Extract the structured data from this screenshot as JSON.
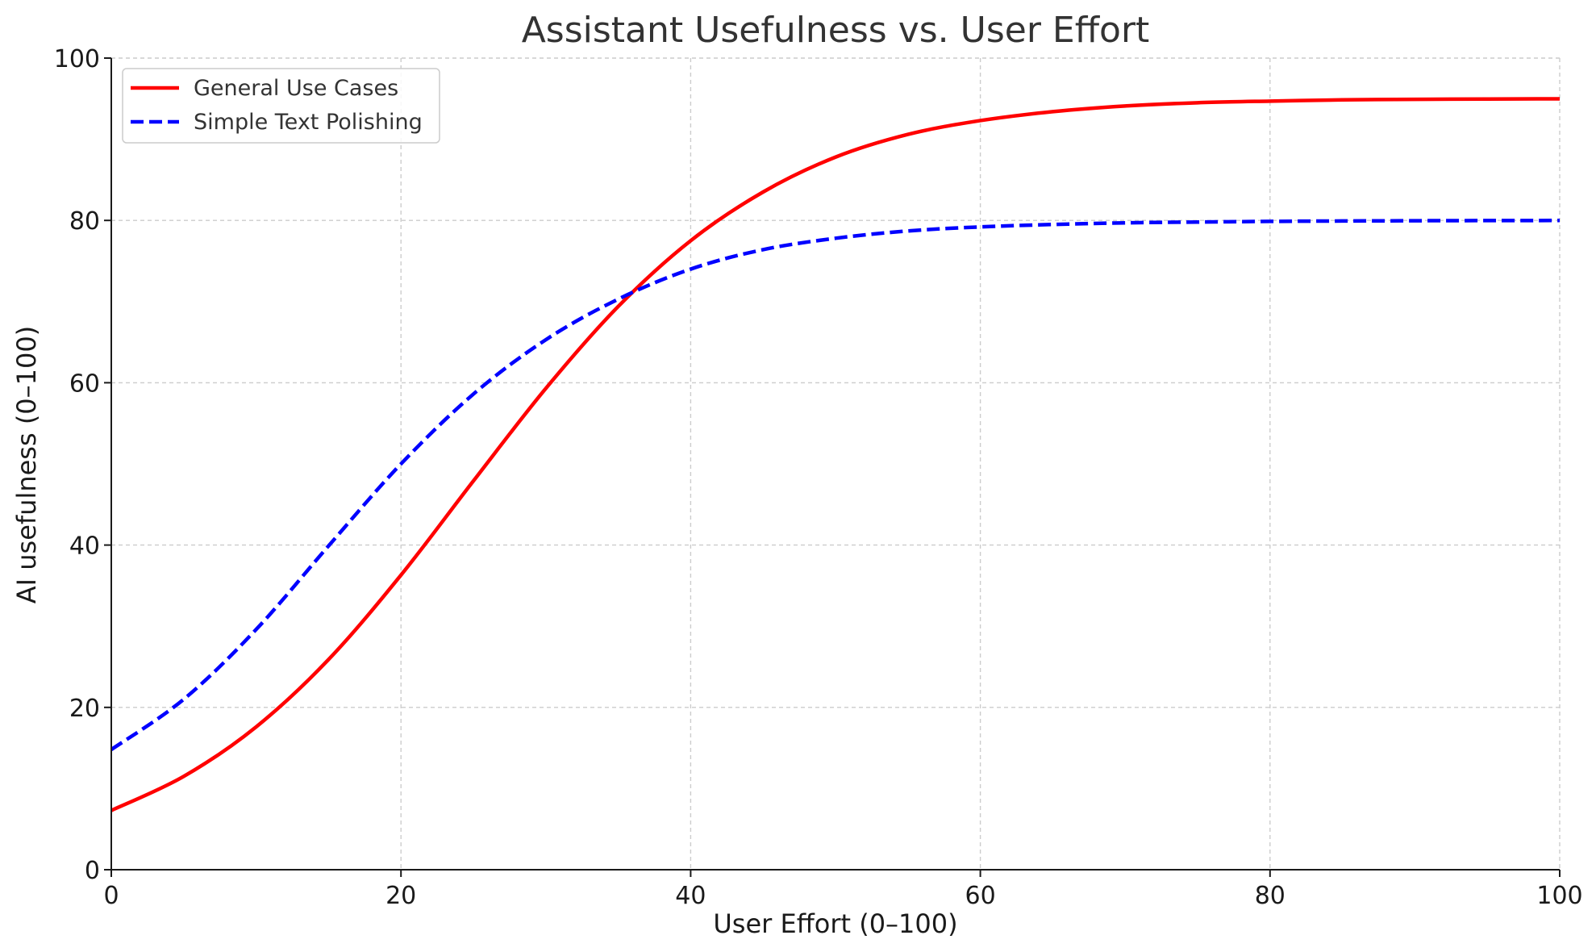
{
  "chart_data": {
    "type": "line",
    "title": "Assistant Usefulness vs. User Effort",
    "xlabel": "User Effort (0–100)",
    "ylabel": "AI usefulness (0–100)",
    "xlim": [
      0,
      100
    ],
    "ylim": [
      0,
      100
    ],
    "xticks": [
      0,
      20,
      40,
      60,
      80,
      100
    ],
    "yticks": [
      0,
      20,
      40,
      60,
      80,
      100
    ],
    "grid": true,
    "legend_position": "top-left",
    "x": [
      0,
      5,
      10,
      15,
      20,
      25,
      30,
      35,
      40,
      45,
      50,
      55,
      60,
      65,
      70,
      75,
      80,
      85,
      90,
      95,
      100
    ],
    "series": [
      {
        "name": "General Use Cases",
        "color": "#ff0000",
        "line_style": "solid",
        "values": [
          7.3,
          11.5,
          17.6,
          25.9,
          36.3,
          47.9,
          59.3,
          69.4,
          77.5,
          83.5,
          87.8,
          90.6,
          92.3,
          93.4,
          94.1,
          94.5,
          94.7,
          94.85,
          94.92,
          94.96,
          94.98
        ]
      },
      {
        "name": "Simple Text Polishing",
        "color": "#0000ff",
        "line_style": "dashed",
        "values": [
          14.8,
          21.0,
          29.6,
          39.9,
          50.0,
          58.6,
          65.3,
          70.3,
          74.0,
          76.4,
          77.8,
          78.7,
          79.2,
          79.5,
          79.7,
          79.8,
          79.88,
          79.93,
          79.96,
          79.98,
          79.99
        ]
      }
    ]
  }
}
